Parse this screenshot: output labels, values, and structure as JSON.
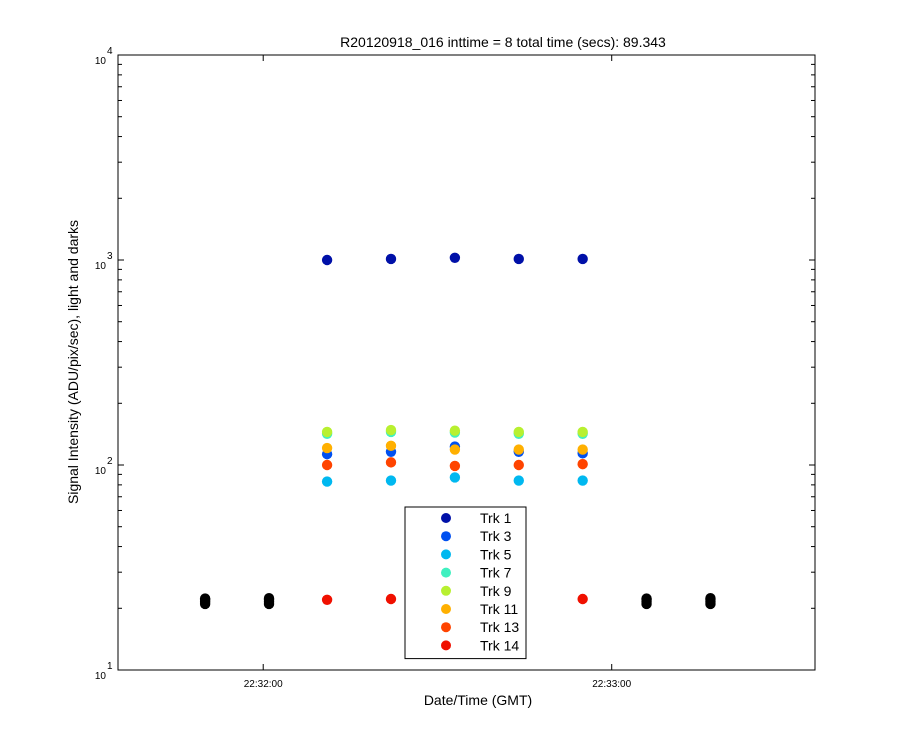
{
  "chart_data": {
    "type": "scatter",
    "title": "R20120918_016 inttime = 8 total time (secs): 89.343",
    "xlabel": "Date/Time (GMT)",
    "ylabel": "Signal Intensity (ADU/pix/sec), light and darks",
    "yscale": "log",
    "ylim": [
      10,
      10000
    ],
    "xlim": [
      "22:31:35",
      "22:33:35"
    ],
    "x_ticks": [
      "22:32:00",
      "22:33:00"
    ],
    "y_ticks": [
      {
        "base": "10",
        "exp": "1",
        "value": 10
      },
      {
        "base": "10",
        "exp": "2",
        "value": 100
      },
      {
        "base": "10",
        "exp": "3",
        "value": 1000
      },
      {
        "base": "10",
        "exp": "4",
        "value": 10000
      }
    ],
    "grid": false,
    "legend_position": "bottom-center",
    "light_times": [
      "22:32:11",
      "22:32:22",
      "22:32:33",
      "22:32:44",
      "22:32:55"
    ],
    "series": [
      {
        "name": "Trk 1",
        "color": "#0010a8",
        "values": [
          1000,
          1012,
          1025,
          1012,
          1012
        ]
      },
      {
        "name": "Trk 3",
        "color": "#0050f0",
        "values": [
          113,
          116,
          123,
          116,
          114
        ]
      },
      {
        "name": "Trk 5",
        "color": "#00b8f0",
        "values": [
          83,
          84,
          87,
          84,
          84
        ]
      },
      {
        "name": "Trk 7",
        "color": "#40f0c0",
        "values": [
          142,
          145,
          144,
          142,
          142
        ]
      },
      {
        "name": "Trk 9",
        "color": "#b8f030",
        "values": [
          145,
          148,
          147,
          145,
          145
        ]
      },
      {
        "name": "Trk 11",
        "color": "#ffb000",
        "values": [
          121,
          124,
          119,
          119,
          119
        ]
      },
      {
        "name": "Trk 13",
        "color": "#ff4400",
        "values": [
          100,
          103,
          99,
          100,
          101
        ]
      },
      {
        "name": "Trk 14",
        "color": "#f01000",
        "x": [
          "22:32:11",
          "22:32:22",
          "22:32:55"
        ],
        "values": [
          22,
          22.2,
          22.2
        ]
      }
    ],
    "darks": {
      "color": "#000000",
      "x": [
        "22:31:50",
        "22:32:01",
        "22:33:06",
        "22:33:17"
      ],
      "values": [
        [
          21,
          21.5,
          22,
          22.3
        ],
        [
          21,
          21.5,
          22,
          22.4
        ],
        [
          21,
          21.5,
          22,
          22.3
        ],
        [
          21,
          21.5,
          22,
          22.4
        ]
      ]
    }
  }
}
